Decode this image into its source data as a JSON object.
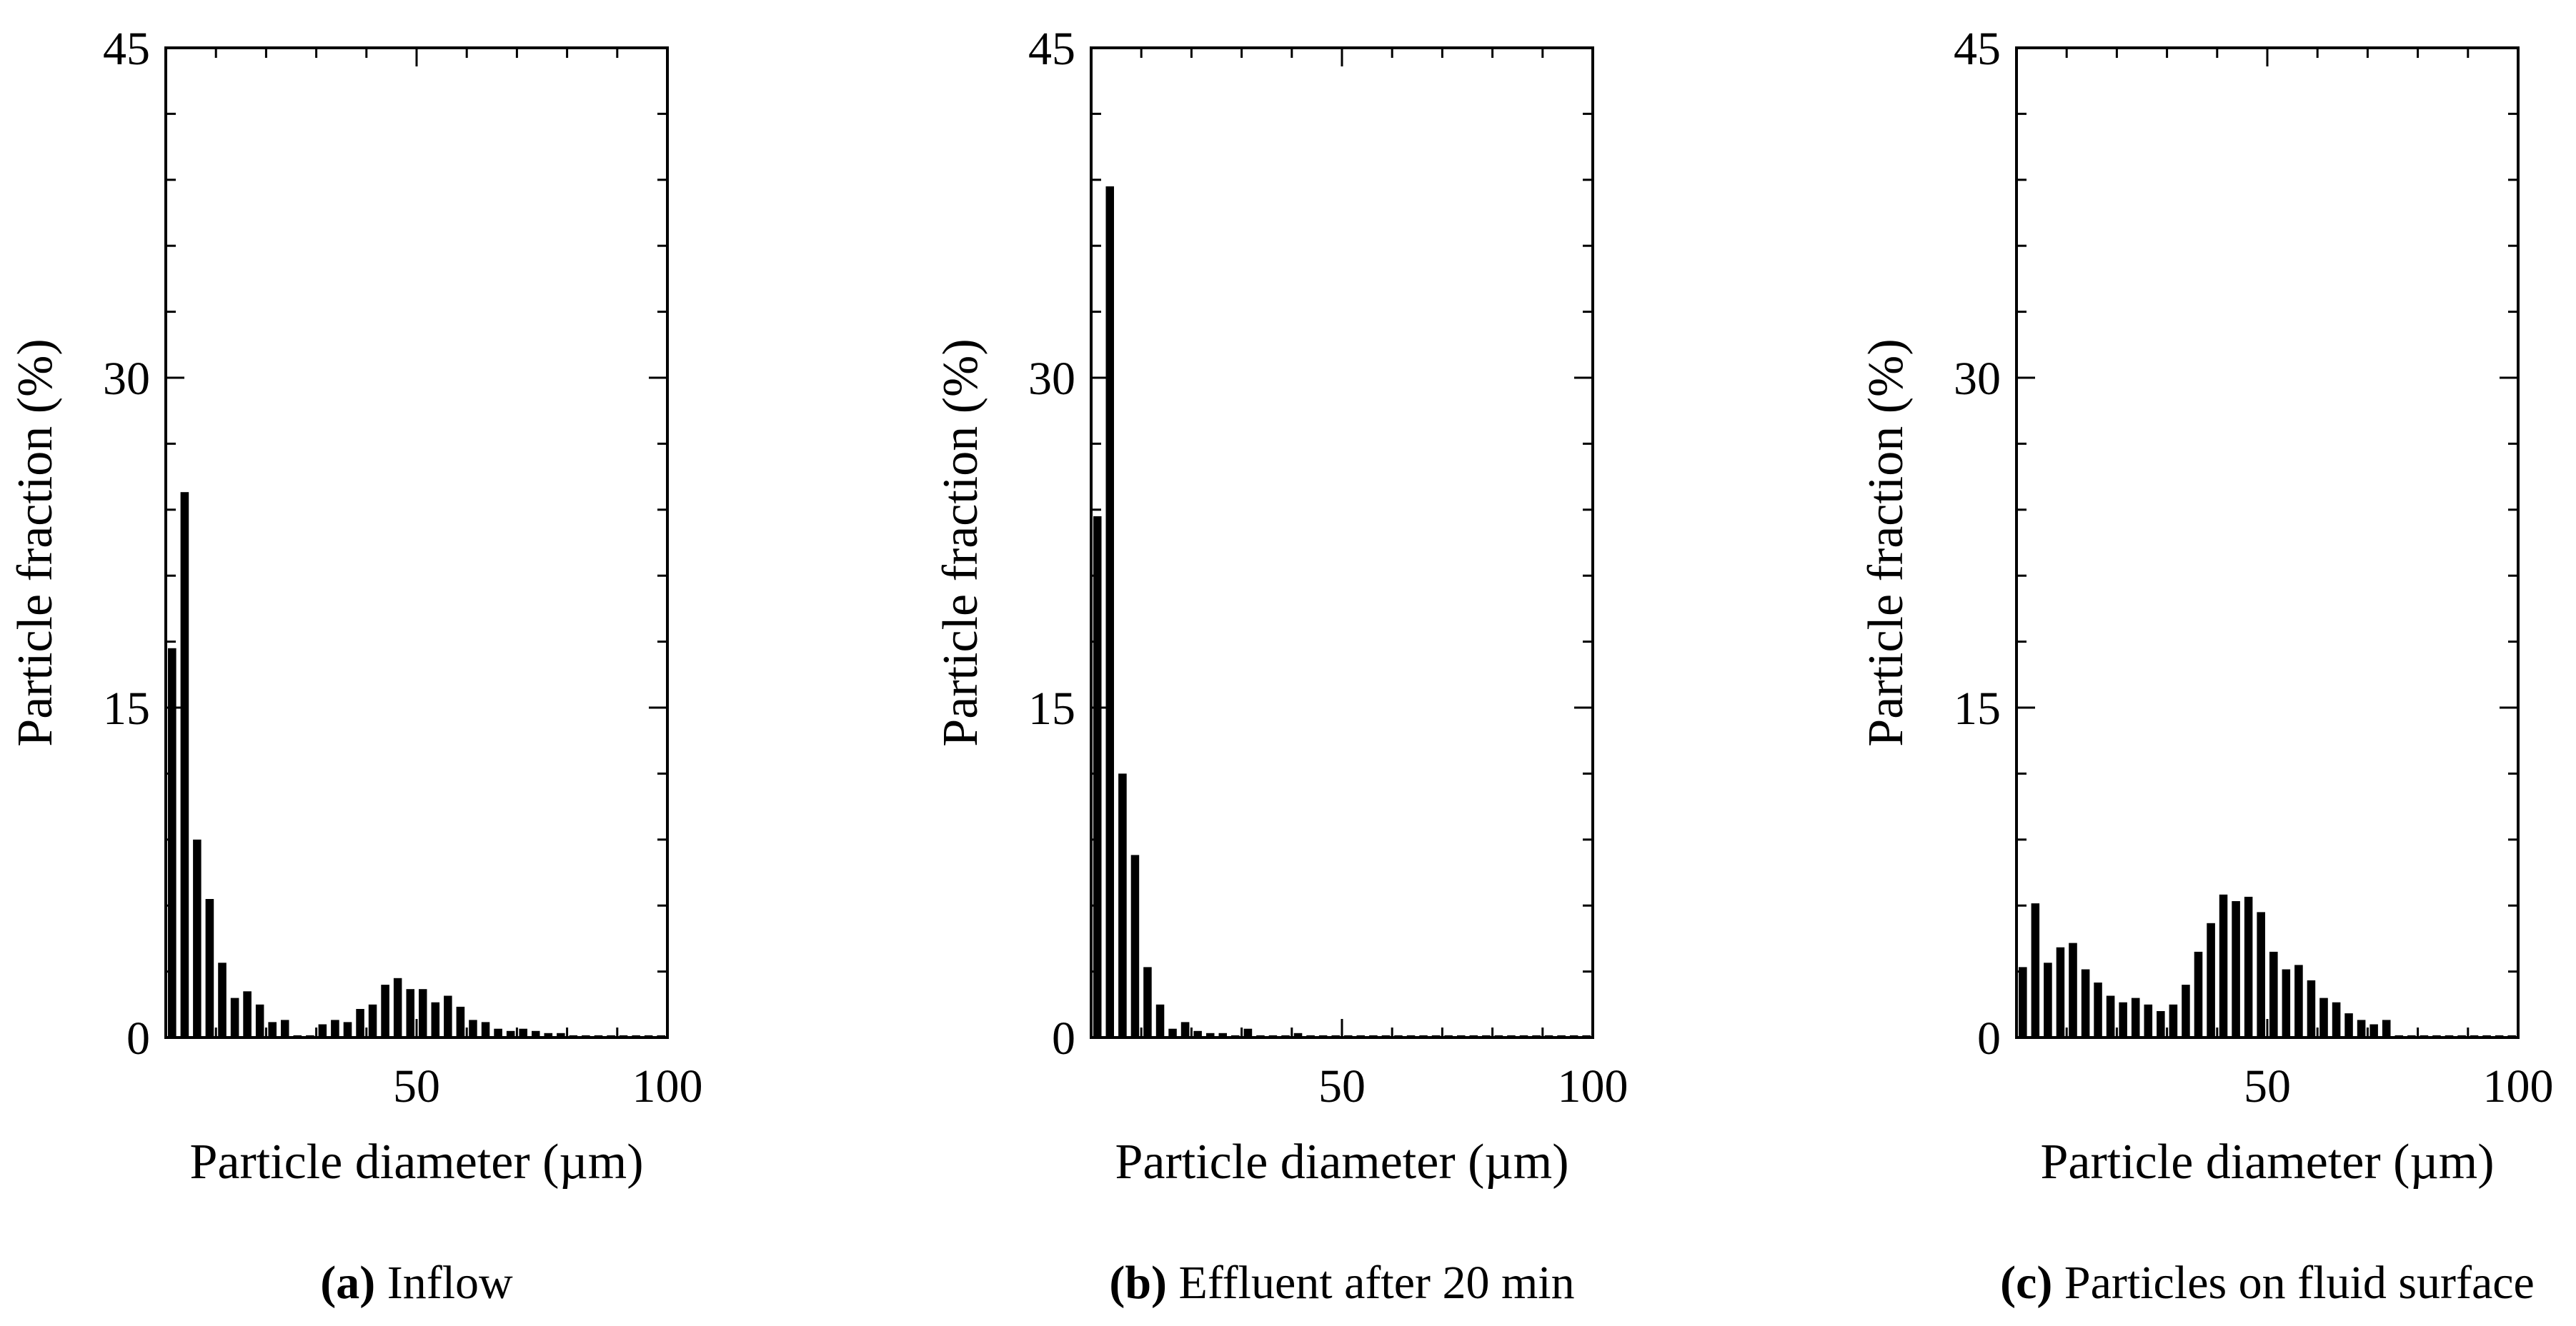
{
  "chart_data": [
    {
      "type": "bar",
      "caption_prefix": "(a)",
      "caption_text": "Inflow",
      "xlabel": "Particle diameter (µm)",
      "ylabel": "Particle fraction (%)",
      "xlim": [
        0,
        100
      ],
      "ylim": [
        0,
        45
      ],
      "xticks": [
        "50",
        "100"
      ],
      "yticks": [
        "0",
        "15",
        "30",
        "45"
      ],
      "bin_width": 2.5,
      "x": [
        1.25,
        3.75,
        6.25,
        8.75,
        11.25,
        13.75,
        16.25,
        18.75,
        21.25,
        23.75,
        26.25,
        28.75,
        31.25,
        33.75,
        36.25,
        38.75,
        41.25,
        43.75,
        46.25,
        48.75,
        51.25,
        53.75,
        56.25,
        58.75,
        61.25,
        63.75,
        66.25,
        68.75,
        71.25,
        73.75,
        76.25,
        78.75,
        81.25,
        83.75,
        86.25,
        88.75,
        91.25,
        93.75,
        96.25,
        98.75
      ],
      "values": [
        17.7,
        24.8,
        9.0,
        6.3,
        3.4,
        1.8,
        2.1,
        1.5,
        0.7,
        0.8,
        0.1,
        0.1,
        0.6,
        0.8,
        0.7,
        1.3,
        1.5,
        2.4,
        2.7,
        2.2,
        2.2,
        1.6,
        1.9,
        1.4,
        0.8,
        0.7,
        0.4,
        0.3,
        0.4,
        0.3,
        0.2,
        0.2,
        0.1,
        0.1,
        0.1,
        0.1,
        0.1,
        0.1,
        0.1,
        0.1
      ],
      "grid": false,
      "legend": "none"
    },
    {
      "type": "bar",
      "caption_prefix": "(b)",
      "caption_text": "Effluent after 20 min",
      "xlabel": "Particle diameter (µm)",
      "ylabel": "Particle fraction (%)",
      "xlim": [
        0,
        100
      ],
      "ylim": [
        0,
        45
      ],
      "xticks": [
        "50",
        "100"
      ],
      "yticks": [
        "0",
        "15",
        "30",
        "45"
      ],
      "bin_width": 2.5,
      "x": [
        1.25,
        3.75,
        6.25,
        8.75,
        11.25,
        13.75,
        16.25,
        18.75,
        21.25,
        23.75,
        26.25,
        28.75,
        31.25,
        33.75,
        36.25,
        38.75,
        41.25,
        43.75,
        46.25,
        48.75,
        51.25,
        53.75,
        56.25,
        58.75,
        61.25,
        63.75,
        66.25,
        68.75,
        71.25,
        73.75,
        76.25,
        78.75,
        81.25,
        83.75,
        86.25,
        88.75,
        91.25,
        93.75,
        96.25,
        98.75
      ],
      "values": [
        23.7,
        38.7,
        12.0,
        8.3,
        3.2,
        1.5,
        0.4,
        0.7,
        0.3,
        0.2,
        0.2,
        0.1,
        0.4,
        0.1,
        0.1,
        0.1,
        0.2,
        0.1,
        0.1,
        0.1,
        0.1,
        0.1,
        0.1,
        0.1,
        0.1,
        0.1,
        0.1,
        0.1,
        0.1,
        0.1,
        0.1,
        0.1,
        0.1,
        0.1,
        0.1,
        0.1,
        0.1,
        0.1,
        0.1,
        0.1
      ],
      "grid": false,
      "legend": "none"
    },
    {
      "type": "bar",
      "caption_prefix": "(c)",
      "caption_text": "Particles on fluid surface",
      "xlabel": "Particle diameter (µm)",
      "ylabel": "Particle fraction (%)",
      "xlim": [
        0,
        100
      ],
      "ylim": [
        0,
        45
      ],
      "xticks": [
        "50",
        "100"
      ],
      "yticks": [
        "0",
        "15",
        "30",
        "45"
      ],
      "bin_width": 2.5,
      "x": [
        1.25,
        3.75,
        6.25,
        8.75,
        11.25,
        13.75,
        16.25,
        18.75,
        21.25,
        23.75,
        26.25,
        28.75,
        31.25,
        33.75,
        36.25,
        38.75,
        41.25,
        43.75,
        46.25,
        48.75,
        51.25,
        53.75,
        56.25,
        58.75,
        61.25,
        63.75,
        66.25,
        68.75,
        71.25,
        73.75,
        76.25,
        78.75,
        81.25,
        83.75,
        86.25,
        88.75,
        91.25,
        93.75,
        96.25,
        98.75
      ],
      "values": [
        3.2,
        6.1,
        3.4,
        4.1,
        4.3,
        3.1,
        2.5,
        1.9,
        1.6,
        1.8,
        1.5,
        1.2,
        1.5,
        2.4,
        3.9,
        5.2,
        6.5,
        6.2,
        6.4,
        5.7,
        3.9,
        3.1,
        3.3,
        2.6,
        1.8,
        1.6,
        1.1,
        0.8,
        0.6,
        0.8,
        0.1,
        0.1,
        0.1,
        0.1,
        0.1,
        0.1,
        0.1,
        0.1,
        0.1,
        0.1
      ],
      "grid": false,
      "legend": "none"
    }
  ]
}
